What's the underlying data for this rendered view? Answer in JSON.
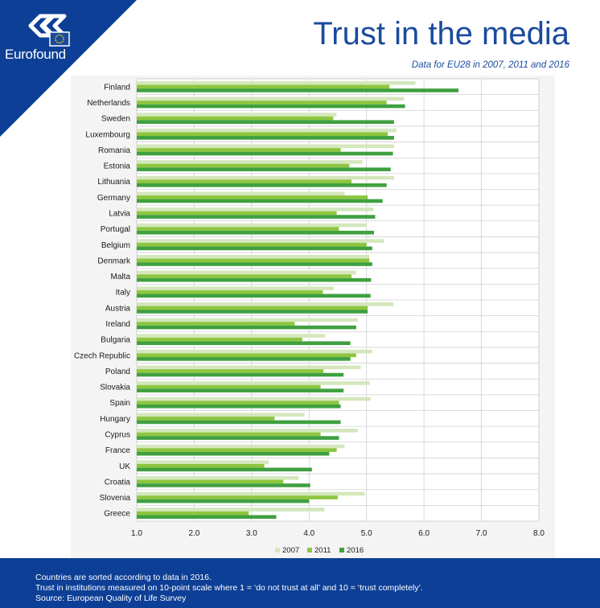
{
  "header": {
    "brand": "Eurofound",
    "title": "Trust in the media",
    "subtitle": "Data for EU28 in 2007, 2011 and 2016"
  },
  "footer": {
    "lines": [
      "Countries are sorted according to data in 2016.",
      "Trust in institutions measured on 10-point scale where 1 = ‘do not trust at all’ and 10 = ‘trust completely’.",
      "Source: European Quality of Life Survey"
    ]
  },
  "colors": {
    "corner": "#0d3f96",
    "logo_flag": "#1a4b9b",
    "series_2007": "#d4e7bd",
    "series_2011": "#8dc63f",
    "series_2016": "#3fa040",
    "grid": "#d0d0d0",
    "text": "#1a1a1a"
  },
  "chart_data": {
    "type": "bar",
    "orientation": "horizontal",
    "categories": [
      "Finland",
      "Netherlands",
      "Sweden",
      "Luxembourg",
      "Romania",
      "Estonia",
      "Lithuania",
      "Germany",
      "Latvia",
      "Portugal",
      "Belgium",
      "Denmark",
      "Malta",
      "Italy",
      "Austria",
      "Ireland",
      "Bulgaria",
      "Czech Republic",
      "Poland",
      "Slovakia",
      "Spain",
      "Hungary",
      "Cyprus",
      "France",
      "UK",
      "Croatia",
      "Slovenia",
      "Greece"
    ],
    "series": [
      {
        "name": "2007",
        "values": [
          5.85,
          5.65,
          4.48,
          5.52,
          5.48,
          4.93,
          5.48,
          4.62,
          5.12,
          5.0,
          5.3,
          5.05,
          4.82,
          4.43,
          5.47,
          4.85,
          4.28,
          5.1,
          4.9,
          5.06,
          5.07,
          3.92,
          4.85,
          4.62,
          3.3,
          3.82,
          4.97,
          4.27
        ]
      },
      {
        "name": "2011",
        "values": [
          5.4,
          5.35,
          4.42,
          5.37,
          4.55,
          4.7,
          4.74,
          5.02,
          4.48,
          4.52,
          5.0,
          5.05,
          4.74,
          4.24,
          5.02,
          3.75,
          3.88,
          4.82,
          4.25,
          4.2,
          4.52,
          3.4,
          4.2,
          4.48,
          3.22,
          3.55,
          4.5,
          2.95
        ]
      },
      {
        "name": "2016",
        "values": [
          6.6,
          5.67,
          5.48,
          5.48,
          5.46,
          5.42,
          5.35,
          5.28,
          5.15,
          5.13,
          5.1,
          5.1,
          5.08,
          5.07,
          5.02,
          4.82,
          4.72,
          4.72,
          4.6,
          4.6,
          4.55,
          4.55,
          4.52,
          4.35,
          4.05,
          4.02,
          4.0,
          3.43
        ]
      }
    ],
    "xlim": [
      1.0,
      8.0
    ],
    "xticks": [
      "1.0",
      "2.0",
      "3.0",
      "4.0",
      "5.0",
      "6.0",
      "7.0",
      "8.0"
    ],
    "grid": true,
    "legend_position": "bottom"
  }
}
